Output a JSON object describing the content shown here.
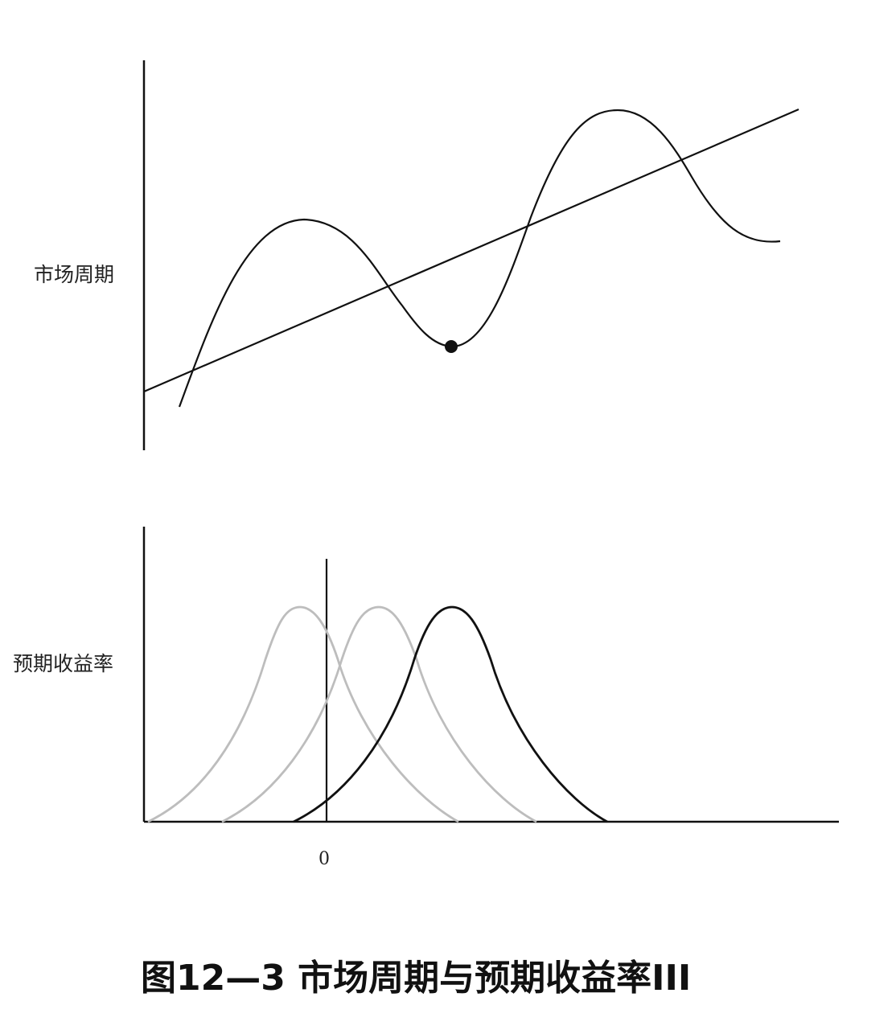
{
  "diagram": {
    "top_panel": {
      "label": "市场周期",
      "series": {
        "trend_line": "trend-line",
        "cycle_curve": "cycle-curve"
      },
      "marker": "trough-marker"
    },
    "bottom_panel": {
      "label": "预期收益率",
      "zero_label": "0",
      "distributions": [
        {
          "color": "#bdbdbd",
          "peak_shift": -1
        },
        {
          "color": "#bdbdbd",
          "peak_shift": 0
        },
        {
          "color": "#111111",
          "peak_shift": 1
        }
      ]
    },
    "caption": "图12—3 市场周期与预期收益率III"
  }
}
